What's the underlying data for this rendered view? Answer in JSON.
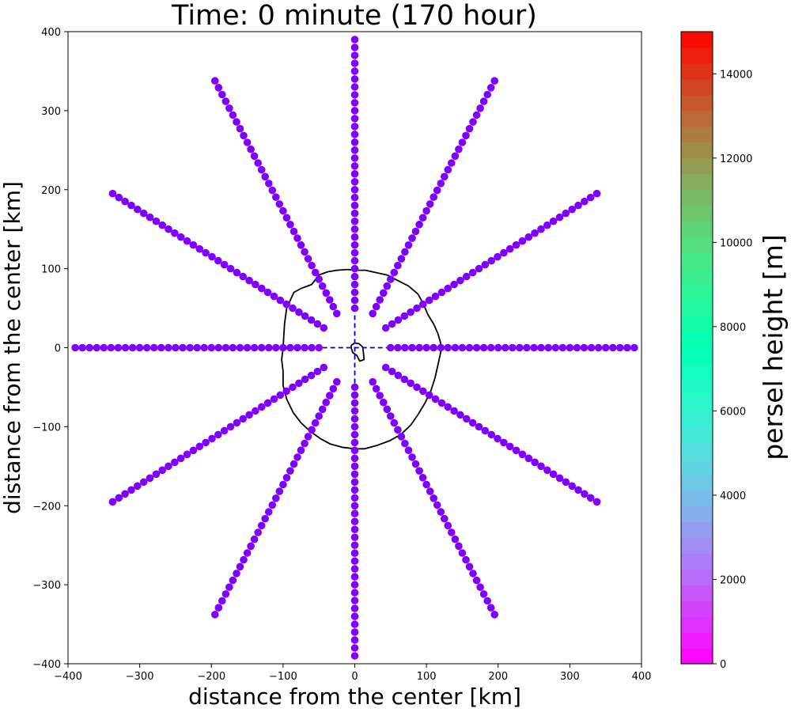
{
  "chart_data": {
    "type": "scatter",
    "title": "Time: 0 minute (170 hour)",
    "xlabel": "distance from the center [km]",
    "ylabel": "distance from the center [km]",
    "xlim": [
      -400,
      400
    ],
    "ylim": [
      -400,
      400
    ],
    "xticks": [
      -400,
      -300,
      -200,
      -100,
      0,
      100,
      200,
      300,
      400
    ],
    "yticks": [
      -400,
      -300,
      -200,
      -100,
      0,
      100,
      200,
      300,
      400
    ],
    "xtick_labels": [
      "−400",
      "−300",
      "−200",
      "−100",
      "0",
      "100",
      "200",
      "300",
      "400"
    ],
    "ytick_labels": [
      "−400",
      "−300",
      "−200",
      "−100",
      "0",
      "100",
      "200",
      "300",
      "400"
    ],
    "grid": false,
    "point_color": "#7f00ff",
    "parcel_height_m": 0,
    "rays": {
      "angles_deg": [
        0,
        30,
        60,
        90,
        120,
        150,
        180,
        210,
        240,
        270,
        300,
        330
      ],
      "r_start_km": 50,
      "r_end_km": 390,
      "r_step_km": 10
    },
    "contour_km": [
      [
        -100,
        0
      ],
      [
        -98,
        30
      ],
      [
        -95,
        50
      ],
      [
        -85,
        70
      ],
      [
        -75,
        75
      ],
      [
        -60,
        80
      ],
      [
        -50,
        92
      ],
      [
        -38,
        96
      ],
      [
        -25,
        98
      ],
      [
        -10,
        99
      ],
      [
        0,
        98
      ],
      [
        15,
        98
      ],
      [
        30,
        95
      ],
      [
        45,
        92
      ],
      [
        60,
        85
      ],
      [
        75,
        78
      ],
      [
        88,
        68
      ],
      [
        96,
        55
      ],
      [
        102,
        42
      ],
      [
        110,
        30
      ],
      [
        116,
        18
      ],
      [
        120,
        5
      ],
      [
        120,
        -5
      ],
      [
        116,
        -22
      ],
      [
        112,
        -38
      ],
      [
        106,
        -55
      ],
      [
        98,
        -70
      ],
      [
        88,
        -85
      ],
      [
        78,
        -98
      ],
      [
        64,
        -110
      ],
      [
        48,
        -118
      ],
      [
        30,
        -124
      ],
      [
        14,
        -128
      ],
      [
        0,
        -128
      ],
      [
        -18,
        -126
      ],
      [
        -34,
        -122
      ],
      [
        -48,
        -115
      ],
      [
        -62,
        -106
      ],
      [
        -75,
        -95
      ],
      [
        -86,
        -82
      ],
      [
        -95,
        -65
      ],
      [
        -100,
        -48
      ],
      [
        -100,
        -30
      ],
      [
        -102,
        -15
      ],
      [
        -100,
        0
      ]
    ],
    "eye_contour_km": [
      [
        -5,
        3
      ],
      [
        0,
        6
      ],
      [
        6,
        5
      ],
      [
        11,
        1
      ],
      [
        12,
        -6
      ],
      [
        13,
        -15
      ],
      [
        7,
        -17
      ],
      [
        3,
        -10
      ],
      [
        -3,
        -6
      ],
      [
        -5,
        0
      ],
      [
        -5,
        3
      ]
    ],
    "dashed_lines": {
      "color": "#0000cc",
      "x_range_km": [
        -45,
        45
      ],
      "y_range_km": [
        -45,
        45
      ]
    },
    "colorbar": {
      "label": "persel height [m]",
      "min": 0,
      "max": 15000,
      "ticks": [
        0,
        2000,
        4000,
        6000,
        8000,
        10000,
        12000,
        14000
      ],
      "tick_labels": [
        "0",
        "2000",
        "4000",
        "6000",
        "8000",
        "10000",
        "12000",
        "14000"
      ],
      "levels": 40,
      "colormap": "rainbow"
    }
  }
}
